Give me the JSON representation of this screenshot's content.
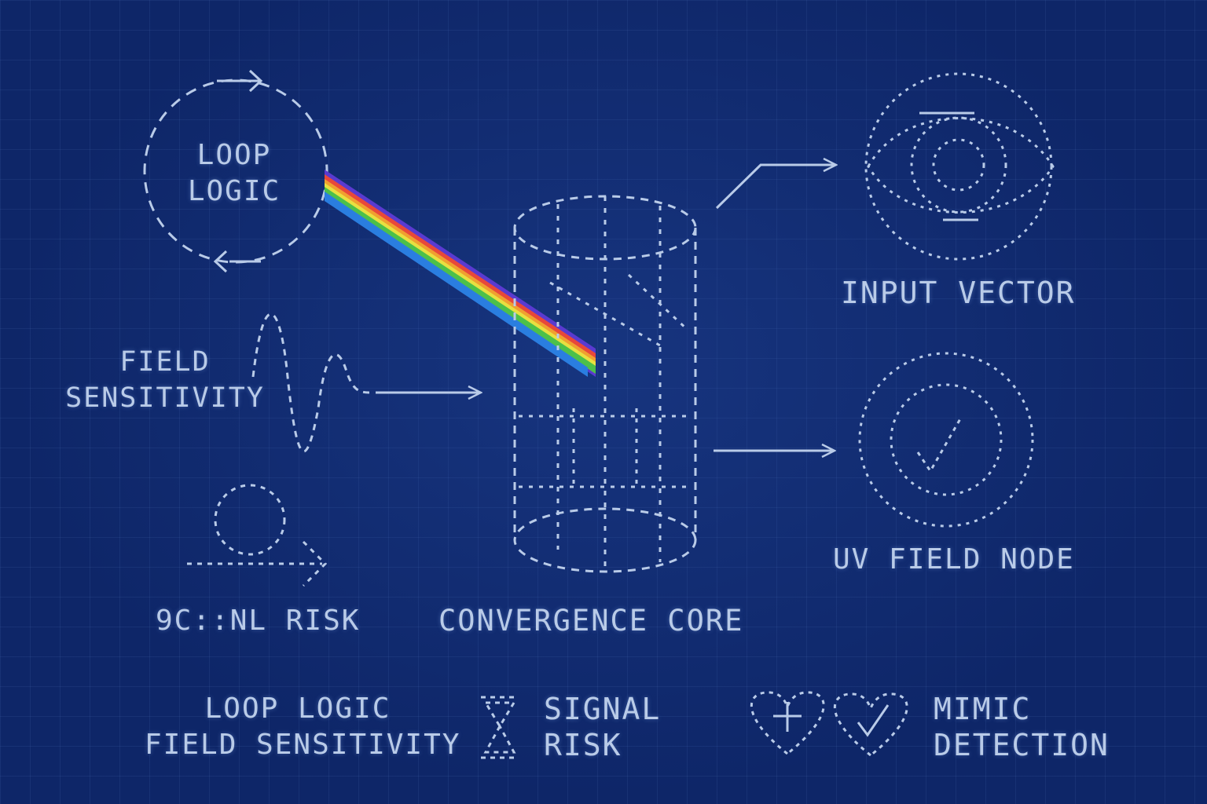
{
  "nodes": {
    "loop_logic": [
      "LOOP",
      "LOGIC"
    ],
    "field_sensitivity": [
      "FIELD",
      "SENSITIVITY"
    ],
    "signal_risk": "9C::NL RISK",
    "convergence_core": "CONVERGENCE CORE",
    "input_vector": "INPUT VECTOR",
    "uv_field_node": "UV FIELD NODE"
  },
  "legend": {
    "loop_field": [
      "LOOP LOGIC",
      "FIELD SENSITIVITY"
    ],
    "signal_risk": [
      "SIGNAL",
      "RISK"
    ],
    "mimic_detection": [
      "MIMIC",
      "DETECTION"
    ]
  },
  "colors": {
    "background": "#0e2668",
    "line": "#b9cbe8",
    "spectrum": [
      "#e8483a",
      "#f0a030",
      "#e8e040",
      "#4cc04a",
      "#2a7ee0",
      "#5a3ad0"
    ]
  },
  "icons": [
    "dashed-cycle-icon",
    "wave-icon",
    "circle-arrow-icon",
    "cylinder-icon",
    "eye-target-icon",
    "clock-gauge-icon",
    "hourglass-icon",
    "heart-plus-icon",
    "heart-check-icon"
  ]
}
